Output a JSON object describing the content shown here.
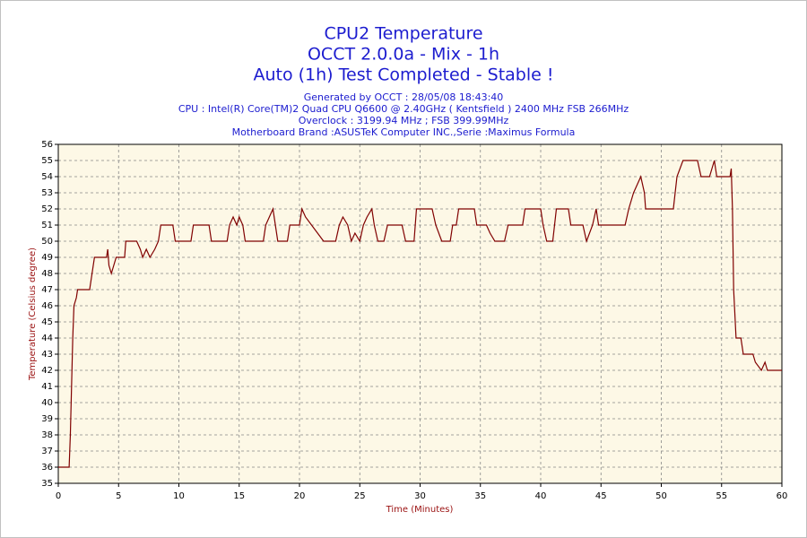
{
  "chart_data": {
    "type": "line",
    "title": "CPU2 Temperature",
    "subtitle": [
      "OCCT 2.0.0a - Mix - 1h",
      "Auto (1h) Test Completed - Stable !"
    ],
    "info": [
      "Generated by OCCT : 28/05/08 18:43:40",
      "CPU : Intel(R) Core(TM)2 Quad CPU Q6600 @ 2.40GHz ( Kentsfield ) 2400 MHz FSB 266MHz",
      "Overclock : 3199.94 MHz ; FSB 399.99MHz",
      "Motherboard Brand :ASUSTeK Computer INC.,Serie :Maximus Formula"
    ],
    "x_label": "Time (Minutes)",
    "y_label": "Temperature (Celsius degree)",
    "x": [
      0,
      0.9,
      1.0,
      1.1,
      1.2,
      1.3,
      1.5,
      1.6,
      2.6,
      2.8,
      3.0,
      4.0,
      4.1,
      4.2,
      4.4,
      4.6,
      4.8,
      5.5,
      5.6,
      6.5,
      6.8,
      7.0,
      7.3,
      7.6,
      8.0,
      8.3,
      8.5,
      9.5,
      9.7,
      11,
      11.2,
      12.5,
      12.7,
      14,
      14.2,
      14.5,
      14.8,
      15.0,
      15.3,
      15.5,
      17,
      17.2,
      17.5,
      17.8,
      18,
      18.2,
      19,
      19.2,
      20,
      20.2,
      20.5,
      21,
      21.5,
      22,
      23,
      23.3,
      23.6,
      24,
      24.3,
      24.6,
      25,
      25.3,
      25.6,
      26,
      26.2,
      26.5,
      27,
      27.3,
      28.5,
      28.8,
      29.5,
      29.7,
      31,
      31.3,
      31.8,
      32.5,
      32.7,
      33,
      33.2,
      34.5,
      34.7,
      35.5,
      35.8,
      36.2,
      37,
      37.3,
      38.5,
      38.7,
      40,
      40.2,
      40.5,
      41,
      41.3,
      42.3,
      42.5,
      43.5,
      43.8,
      44.3,
      44.6,
      44.8,
      47,
      47.3,
      47.7,
      48,
      48.3,
      48.6,
      48.7,
      51,
      51.3,
      51.8,
      53,
      53.3,
      54,
      54.4,
      54.6,
      55.7,
      55.8,
      55.9,
      56,
      56.2,
      56.6,
      56.8,
      57.6,
      57.8,
      58.3,
      58.6,
      58.8,
      60
    ],
    "series": [
      {
        "name": "CPU2",
        "color": "#800000",
        "values": [
          36,
          36,
          38,
          41,
          44,
          46,
          46.5,
          47,
          47,
          48,
          49,
          49,
          49.5,
          48.5,
          48,
          48.5,
          49,
          49,
          50,
          50,
          49.5,
          49,
          49.5,
          49,
          49.5,
          50,
          51,
          51,
          50,
          50,
          51,
          51,
          50,
          50,
          51,
          51.5,
          51,
          51.5,
          51,
          50,
          50,
          51,
          51.5,
          52,
          51,
          50,
          50,
          51,
          51,
          52,
          51.5,
          51,
          50.5,
          50,
          50,
          51,
          51.5,
          51,
          50,
          50.5,
          50,
          51,
          51.5,
          52,
          51,
          50,
          50,
          51,
          51,
          50,
          50,
          52,
          52,
          51,
          50,
          50,
          51,
          51,
          52,
          52,
          51,
          51,
          50.5,
          50,
          50,
          51,
          51,
          52,
          52,
          51,
          50,
          50,
          52,
          52,
          51,
          51,
          50,
          51,
          52,
          51,
          51,
          52,
          53,
          53.5,
          54,
          53,
          52,
          52,
          54,
          55,
          55,
          54,
          54,
          55,
          54,
          54,
          54.5,
          52,
          47,
          44,
          44,
          43,
          43,
          42.5,
          42,
          42.5,
          42,
          42
        ]
      }
    ],
    "xlim": [
      0,
      60
    ],
    "ylim": [
      35,
      56
    ],
    "xticks": [
      0,
      5,
      10,
      15,
      20,
      25,
      30,
      35,
      40,
      45,
      50,
      55,
      60
    ],
    "yticks": [
      35,
      36,
      37,
      38,
      39,
      40,
      41,
      42,
      43,
      44,
      45,
      46,
      47,
      48,
      49,
      50,
      51,
      52,
      53,
      54,
      55,
      56
    ],
    "grid": true
  }
}
